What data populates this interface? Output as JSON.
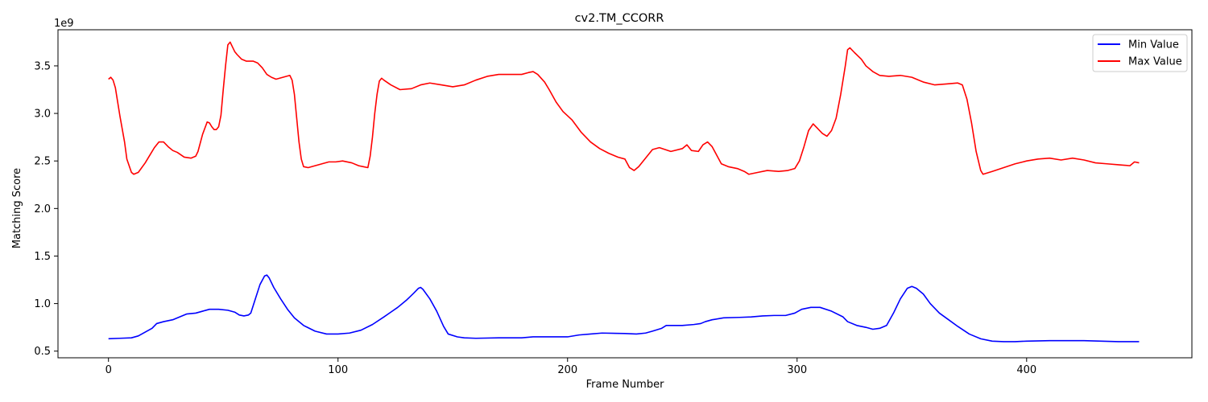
{
  "chart_data": {
    "type": "line",
    "title": "cv2.TM_CCORR",
    "xlabel": "Frame Number",
    "ylabel": "Matching Score",
    "y_scale_label": "1e9",
    "xlim": [
      -22,
      472
    ],
    "ylim": [
      0.43,
      3.88
    ],
    "x_ticks": [
      0,
      100,
      200,
      300,
      400
    ],
    "x_tick_labels": [
      "0",
      "100",
      "200",
      "300",
      "400"
    ],
    "y_ticks": [
      0.5,
      1.0,
      1.5,
      2.0,
      2.5,
      3.0,
      3.5
    ],
    "y_tick_labels": [
      "0.5",
      "1.0",
      "1.5",
      "2.0",
      "2.5",
      "3.0",
      "3.5"
    ],
    "grid": false,
    "legend_position": "top-right",
    "series": [
      {
        "name": "Min Value",
        "color": "#0000ff",
        "points": [
          [
            0,
            0.63
          ],
          [
            5,
            0.635
          ],
          [
            10,
            0.64
          ],
          [
            13,
            0.66
          ],
          [
            16,
            0.7
          ],
          [
            19,
            0.74
          ],
          [
            21,
            0.79
          ],
          [
            24,
            0.81
          ],
          [
            28,
            0.83
          ],
          [
            32,
            0.87
          ],
          [
            34,
            0.89
          ],
          [
            38,
            0.9
          ],
          [
            41,
            0.92
          ],
          [
            44,
            0.94
          ],
          [
            48,
            0.94
          ],
          [
            52,
            0.93
          ],
          [
            55,
            0.91
          ],
          [
            57,
            0.88
          ],
          [
            59,
            0.87
          ],
          [
            61,
            0.88
          ],
          [
            62,
            0.9
          ],
          [
            64,
            1.05
          ],
          [
            66,
            1.2
          ],
          [
            68,
            1.29
          ],
          [
            69,
            1.3
          ],
          [
            70,
            1.27
          ],
          [
            72,
            1.17
          ],
          [
            75,
            1.05
          ],
          [
            78,
            0.94
          ],
          [
            81,
            0.85
          ],
          [
            85,
            0.77
          ],
          [
            90,
            0.71
          ],
          [
            95,
            0.68
          ],
          [
            100,
            0.68
          ],
          [
            105,
            0.69
          ],
          [
            110,
            0.72
          ],
          [
            115,
            0.78
          ],
          [
            120,
            0.86
          ],
          [
            123,
            0.91
          ],
          [
            126,
            0.96
          ],
          [
            130,
            1.04
          ],
          [
            133,
            1.11
          ],
          [
            135,
            1.16
          ],
          [
            136,
            1.17
          ],
          [
            137,
            1.15
          ],
          [
            140,
            1.05
          ],
          [
            143,
            0.92
          ],
          [
            146,
            0.76
          ],
          [
            148,
            0.68
          ],
          [
            152,
            0.65
          ],
          [
            155,
            0.64
          ],
          [
            160,
            0.635
          ],
          [
            170,
            0.64
          ],
          [
            180,
            0.64
          ],
          [
            185,
            0.65
          ],
          [
            190,
            0.65
          ],
          [
            200,
            0.65
          ],
          [
            205,
            0.67
          ],
          [
            210,
            0.68
          ],
          [
            215,
            0.69
          ],
          [
            225,
            0.685
          ],
          [
            230,
            0.68
          ],
          [
            234,
            0.69
          ],
          [
            237,
            0.71
          ],
          [
            241,
            0.74
          ],
          [
            243,
            0.77
          ],
          [
            250,
            0.77
          ],
          [
            255,
            0.78
          ],
          [
            258,
            0.79
          ],
          [
            260,
            0.81
          ],
          [
            263,
            0.83
          ],
          [
            268,
            0.85
          ],
          [
            275,
            0.855
          ],
          [
            280,
            0.86
          ],
          [
            285,
            0.87
          ],
          [
            290,
            0.875
          ],
          [
            295,
            0.875
          ],
          [
            299,
            0.9
          ],
          [
            302,
            0.94
          ],
          [
            306,
            0.96
          ],
          [
            310,
            0.96
          ],
          [
            315,
            0.92
          ],
          [
            320,
            0.86
          ],
          [
            322,
            0.81
          ],
          [
            326,
            0.77
          ],
          [
            330,
            0.75
          ],
          [
            333,
            0.73
          ],
          [
            336,
            0.74
          ],
          [
            339,
            0.77
          ],
          [
            342,
            0.9
          ],
          [
            345,
            1.05
          ],
          [
            348,
            1.16
          ],
          [
            350,
            1.18
          ],
          [
            352,
            1.16
          ],
          [
            355,
            1.1
          ],
          [
            358,
            1.0
          ],
          [
            362,
            0.9
          ],
          [
            366,
            0.83
          ],
          [
            370,
            0.76
          ],
          [
            375,
            0.68
          ],
          [
            380,
            0.63
          ],
          [
            385,
            0.605
          ],
          [
            390,
            0.6
          ],
          [
            395,
            0.6
          ],
          [
            400,
            0.605
          ],
          [
            410,
            0.61
          ],
          [
            425,
            0.61
          ],
          [
            440,
            0.6
          ],
          [
            449,
            0.6
          ]
        ]
      },
      {
        "name": "Max Value",
        "color": "#ff0000",
        "points": [
          [
            0,
            3.36
          ],
          [
            1,
            3.38
          ],
          [
            2,
            3.35
          ],
          [
            3,
            3.27
          ],
          [
            5,
            2.97
          ],
          [
            7,
            2.7
          ],
          [
            8,
            2.52
          ],
          [
            10,
            2.38
          ],
          [
            11,
            2.36
          ],
          [
            13,
            2.38
          ],
          [
            16,
            2.48
          ],
          [
            18,
            2.56
          ],
          [
            20,
            2.64
          ],
          [
            22,
            2.7
          ],
          [
            24,
            2.7
          ],
          [
            26,
            2.65
          ],
          [
            28,
            2.61
          ],
          [
            30,
            2.59
          ],
          [
            33,
            2.54
          ],
          [
            36,
            2.53
          ],
          [
            38,
            2.55
          ],
          [
            39,
            2.6
          ],
          [
            41,
            2.78
          ],
          [
            43,
            2.91
          ],
          [
            44,
            2.9
          ],
          [
            45,
            2.86
          ],
          [
            46,
            2.83
          ],
          [
            47,
            2.83
          ],
          [
            48,
            2.86
          ],
          [
            49,
            2.98
          ],
          [
            50,
            3.25
          ],
          [
            51,
            3.5
          ],
          [
            52,
            3.72
          ],
          [
            53,
            3.75
          ],
          [
            54,
            3.7
          ],
          [
            55,
            3.65
          ],
          [
            56,
            3.62
          ],
          [
            58,
            3.57
          ],
          [
            60,
            3.55
          ],
          [
            63,
            3.55
          ],
          [
            65,
            3.53
          ],
          [
            67,
            3.48
          ],
          [
            69,
            3.41
          ],
          [
            71,
            3.38
          ],
          [
            73,
            3.36
          ],
          [
            76,
            3.38
          ],
          [
            79,
            3.4
          ],
          [
            80,
            3.35
          ],
          [
            81,
            3.2
          ],
          [
            82,
            2.95
          ],
          [
            83,
            2.7
          ],
          [
            84,
            2.52
          ],
          [
            85,
            2.44
          ],
          [
            87,
            2.43
          ],
          [
            90,
            2.45
          ],
          [
            93,
            2.47
          ],
          [
            96,
            2.49
          ],
          [
            99,
            2.49
          ],
          [
            102,
            2.5
          ],
          [
            106,
            2.48
          ],
          [
            109,
            2.45
          ],
          [
            111,
            2.44
          ],
          [
            113,
            2.43
          ],
          [
            114,
            2.55
          ],
          [
            115,
            2.75
          ],
          [
            116,
            3.0
          ],
          [
            117,
            3.2
          ],
          [
            118,
            3.34
          ],
          [
            119,
            3.37
          ],
          [
            120,
            3.35
          ],
          [
            123,
            3.3
          ],
          [
            127,
            3.25
          ],
          [
            132,
            3.26
          ],
          [
            136,
            3.3
          ],
          [
            140,
            3.32
          ],
          [
            145,
            3.3
          ],
          [
            150,
            3.28
          ],
          [
            155,
            3.3
          ],
          [
            160,
            3.35
          ],
          [
            165,
            3.39
          ],
          [
            170,
            3.41
          ],
          [
            175,
            3.41
          ],
          [
            180,
            3.41
          ],
          [
            183,
            3.43
          ],
          [
            185,
            3.44
          ],
          [
            187,
            3.41
          ],
          [
            190,
            3.33
          ],
          [
            192,
            3.25
          ],
          [
            195,
            3.12
          ],
          [
            198,
            3.02
          ],
          [
            202,
            2.93
          ],
          [
            206,
            2.8
          ],
          [
            210,
            2.7
          ],
          [
            214,
            2.63
          ],
          [
            218,
            2.58
          ],
          [
            222,
            2.54
          ],
          [
            225,
            2.52
          ],
          [
            227,
            2.43
          ],
          [
            229,
            2.4
          ],
          [
            231,
            2.44
          ],
          [
            234,
            2.53
          ],
          [
            237,
            2.62
          ],
          [
            240,
            2.64
          ],
          [
            245,
            2.6
          ],
          [
            250,
            2.63
          ],
          [
            252,
            2.67
          ],
          [
            254,
            2.61
          ],
          [
            257,
            2.6
          ],
          [
            259,
            2.67
          ],
          [
            261,
            2.7
          ],
          [
            263,
            2.65
          ],
          [
            265,
            2.56
          ],
          [
            267,
            2.47
          ],
          [
            270,
            2.44
          ],
          [
            274,
            2.42
          ],
          [
            277,
            2.39
          ],
          [
            279,
            2.36
          ],
          [
            283,
            2.38
          ],
          [
            287,
            2.4
          ],
          [
            292,
            2.39
          ],
          [
            296,
            2.4
          ],
          [
            299,
            2.42
          ],
          [
            301,
            2.5
          ],
          [
            303,
            2.65
          ],
          [
            305,
            2.82
          ],
          [
            307,
            2.89
          ],
          [
            309,
            2.84
          ],
          [
            311,
            2.79
          ],
          [
            313,
            2.76
          ],
          [
            315,
            2.82
          ],
          [
            317,
            2.95
          ],
          [
            319,
            3.2
          ],
          [
            321,
            3.5
          ],
          [
            322,
            3.67
          ],
          [
            323,
            3.69
          ],
          [
            325,
            3.64
          ],
          [
            328,
            3.57
          ],
          [
            330,
            3.5
          ],
          [
            333,
            3.44
          ],
          [
            336,
            3.4
          ],
          [
            340,
            3.39
          ],
          [
            345,
            3.4
          ],
          [
            350,
            3.38
          ],
          [
            355,
            3.33
          ],
          [
            360,
            3.3
          ],
          [
            365,
            3.31
          ],
          [
            370,
            3.32
          ],
          [
            372,
            3.3
          ],
          [
            374,
            3.15
          ],
          [
            376,
            2.9
          ],
          [
            378,
            2.6
          ],
          [
            380,
            2.4
          ],
          [
            381,
            2.36
          ],
          [
            385,
            2.39
          ],
          [
            390,
            2.43
          ],
          [
            395,
            2.47
          ],
          [
            400,
            2.5
          ],
          [
            405,
            2.52
          ],
          [
            410,
            2.53
          ],
          [
            415,
            2.51
          ],
          [
            420,
            2.53
          ],
          [
            425,
            2.51
          ],
          [
            430,
            2.48
          ],
          [
            435,
            2.47
          ],
          [
            440,
            2.46
          ],
          [
            445,
            2.45
          ],
          [
            447,
            2.49
          ],
          [
            449,
            2.48
          ]
        ]
      }
    ]
  }
}
